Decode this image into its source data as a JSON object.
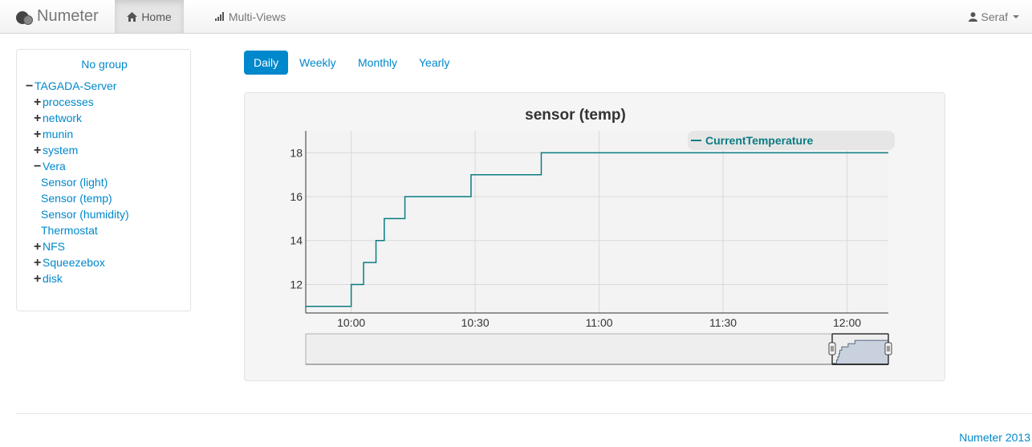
{
  "navbar": {
    "brand": "Numeter",
    "home_label": "Home",
    "multiviews_label": "Multi-Views",
    "user_label": "Seraf",
    "home_icon": "home-icon",
    "multiviews_icon": "signal-bars-icon",
    "user_icon": "user-icon"
  },
  "sidebar": {
    "title": "No group",
    "server": {
      "sign": "−",
      "label": "TAGADA-Server"
    },
    "items": [
      {
        "sign": "+",
        "label": "processes"
      },
      {
        "sign": "+",
        "label": "network"
      },
      {
        "sign": "+",
        "label": "munin"
      },
      {
        "sign": "+",
        "label": "system"
      },
      {
        "sign": "−",
        "label": "Vera"
      },
      {
        "sign": "",
        "label": "Sensor (light)"
      },
      {
        "sign": "",
        "label": "Sensor (temp)"
      },
      {
        "sign": "",
        "label": "Sensor (humidity)"
      },
      {
        "sign": "",
        "label": "Thermostat"
      },
      {
        "sign": "+",
        "label": "NFS"
      },
      {
        "sign": "+",
        "label": "Squeezebox"
      },
      {
        "sign": "+",
        "label": "disk"
      }
    ]
  },
  "periods": [
    {
      "label": "Daily",
      "active": true
    },
    {
      "label": "Weekly",
      "active": false
    },
    {
      "label": "Monthly",
      "active": false
    },
    {
      "label": "Yearly",
      "active": false
    }
  ],
  "chart_data": {
    "type": "line",
    "title": "sensor (temp)",
    "xlabel": "",
    "ylabel": "",
    "xlim": [
      "09:49",
      "12:10"
    ],
    "ylim": [
      10.7,
      19.0
    ],
    "x_ticks": [
      "10:00",
      "10:30",
      "11:00",
      "11:30",
      "12:00"
    ],
    "y_ticks": [
      12,
      14,
      16,
      18
    ],
    "grid": true,
    "legend_position": "top-right",
    "colors": {
      "line": "#0b7c82",
      "grid": "#d9d9d9",
      "plot_bg": "#f3f3f3",
      "legend_bg": "#e6e6e6"
    },
    "series": [
      {
        "name": "CurrentTemperature",
        "step": true,
        "x": [
          "09:49",
          "10:00",
          "10:03",
          "10:06",
          "10:08",
          "10:13",
          "10:15",
          "10:20",
          "10:29",
          "10:46",
          "12:10"
        ],
        "y": [
          11,
          12,
          13,
          14,
          15,
          16,
          16,
          16,
          17,
          18,
          18
        ]
      }
    ],
    "navigator": {
      "window": [
        "11:58",
        "12:10"
      ]
    }
  },
  "footer": {
    "text": "Numeter 2013"
  }
}
